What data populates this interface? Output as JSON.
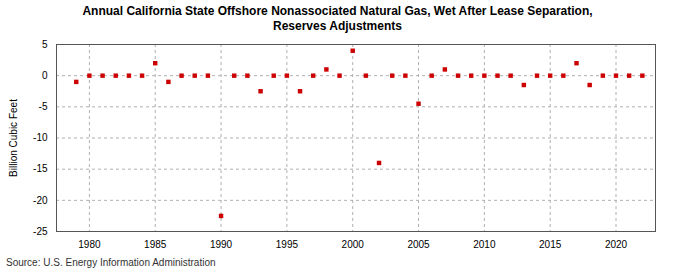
{
  "chart_data": {
    "type": "scatter",
    "title": "Annual California State Offshore Nonassociated Natural Gas, Wet After Lease Separation,\nReserves Adjustments",
    "ylabel": "Billion Cubic Feet",
    "annotations": [
      "Source: U.S. Energy Information Administration"
    ],
    "x": [
      1979,
      1980,
      1981,
      1982,
      1983,
      1984,
      1985,
      1986,
      1987,
      1988,
      1989,
      1990,
      1991,
      1992,
      1993,
      1994,
      1995,
      1996,
      1997,
      1998,
      1999,
      2000,
      2001,
      2002,
      2003,
      2004,
      2005,
      2006,
      2007,
      2008,
      2009,
      2010,
      2011,
      2012,
      2013,
      2014,
      2015,
      2016,
      2017,
      2018,
      2019,
      2020,
      2021,
      2022
    ],
    "values": [
      -1.0,
      0.0,
      0.0,
      0.0,
      0.0,
      0.0,
      2.0,
      -1.0,
      0.0,
      0.0,
      0.0,
      -22.5,
      0.0,
      0.0,
      -2.5,
      0.0,
      0.0,
      -2.5,
      0.0,
      1.0,
      0.0,
      4.0,
      0.0,
      -14.0,
      0.0,
      0.0,
      -4.5,
      0.0,
      1.0,
      0.0,
      0.0,
      0.0,
      0.0,
      0.0,
      -1.5,
      0.0,
      0.0,
      0.0,
      2.0,
      -1.5,
      0.0,
      0.0,
      0.0,
      0.0
    ],
    "color": "#cc0000",
    "marker": "square",
    "xlim": [
      1977.5,
      2023
    ],
    "xticks": [
      1980,
      1985,
      1990,
      1995,
      2000,
      2005,
      2010,
      2015,
      2020
    ],
    "ylim": [
      -25,
      5
    ],
    "yticks": [
      5,
      0,
      -5,
      -10,
      -15,
      -20,
      -25
    ],
    "grid": true
  }
}
